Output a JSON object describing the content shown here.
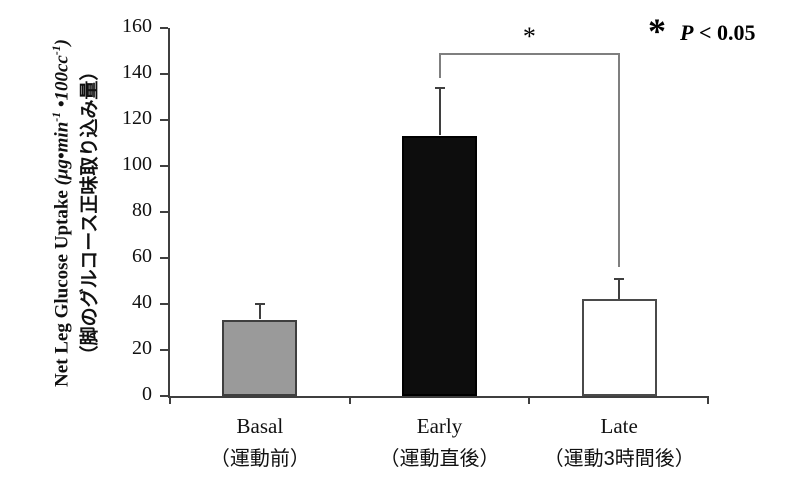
{
  "chart_data": {
    "type": "bar",
    "title": "",
    "ylabel_en_name": "Net Leg Glucose Uptake ",
    "ylabel_units_parts": [
      "(μg•min",
      "-1",
      " •100cc",
      "-1",
      ")"
    ],
    "ylabel_jp": "（脚のグルコース正味取り込み量）",
    "ylim": [
      0,
      160
    ],
    "yticks": [
      0,
      20,
      40,
      60,
      80,
      100,
      120,
      140,
      160
    ],
    "categories": [
      {
        "label": "Basal",
        "sublabel": "（運動前）"
      },
      {
        "label": "Early",
        "sublabel": "（運動直後）"
      },
      {
        "label": "Late",
        "sublabel": "（運動3時間後）"
      }
    ],
    "series": [
      {
        "name": "Net Leg Glucose Uptake",
        "values": [
          33,
          113,
          42
        ],
        "errors": [
          7,
          21,
          9
        ]
      }
    ],
    "bar_colors": [
      "#9a9a9a",
      "#0d0d0d",
      "#ffffff"
    ],
    "bar_border_colors": [
      "#3f3f3f",
      "#000000",
      "#4a4a4a"
    ],
    "significance": {
      "between": [
        "Early",
        "Late"
      ],
      "star": "*",
      "top_value": 149
    }
  },
  "legend": {
    "star": "*",
    "p": "P",
    "rest": " < 0.05"
  },
  "colors": {
    "axis": "#3f3f3f",
    "error": "#3f3f3f",
    "bracket": "#7f7f7f",
    "text": "#111111",
    "background": "#ffffff"
  }
}
